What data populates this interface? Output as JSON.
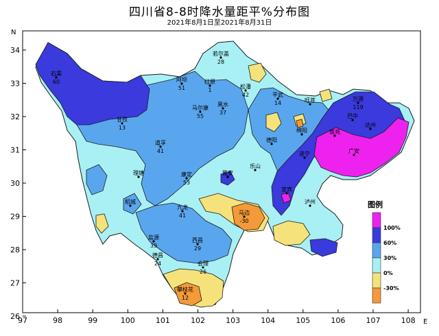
{
  "title": "四川省8-8时降水量距平%分布图",
  "subtitle": "2021年8月1日至2021年8月31日",
  "axes": {
    "x_ticks": [
      "97",
      "98",
      "99",
      "100",
      "101",
      "102",
      "103",
      "104",
      "105",
      "106",
      "107",
      "108"
    ],
    "y_ticks": [
      "34",
      "33",
      "32",
      "31",
      "30",
      "29",
      "28",
      "27",
      "26"
    ],
    "x_letter": "E",
    "y_letter": "N"
  },
  "legend": {
    "title": "图例",
    "items": [
      {
        "label": "100%",
        "color": "#ee22ee"
      },
      {
        "label": "60%",
        "color": "#3a3add"
      },
      {
        "label": "30%",
        "color": "#5aa6ee"
      },
      {
        "label": "0%",
        "color": "#a8f0f4"
      },
      {
        "label": "-30%",
        "color": "#f5e27a"
      },
      {
        "label": "",
        "color": "#f39a3a"
      }
    ]
  },
  "colors": {
    "magenta": "#ee22ee",
    "dark_blue": "#3a3add",
    "mid_blue": "#5aa6ee",
    "cyan": "#a8f0f4",
    "yellow": "#f5e27a",
    "orange": "#f39a3a"
  },
  "stations": [
    {
      "name": "石渠",
      "value": "60"
    },
    {
      "name": "若尔盖",
      "value": "28"
    },
    {
      "name": "阿坝",
      "value": "51"
    },
    {
      "name": "红原",
      "value": "1"
    },
    {
      "name": "松潘",
      "value": "42"
    },
    {
      "name": "甘孜",
      "value": "13"
    },
    {
      "name": "马尔康",
      "value": "55"
    },
    {
      "name": "黑水",
      "value": "37"
    },
    {
      "name": "平武",
      "value": "14"
    },
    {
      "name": "旺苍",
      "value": ""
    },
    {
      "name": "巴中",
      "value": ""
    },
    {
      "name": "万源",
      "value": "119"
    },
    {
      "name": "达州",
      "value": ""
    },
    {
      "name": "南充",
      "value": ""
    },
    {
      "name": "广安",
      "value": ""
    },
    {
      "name": "德阳",
      "value": ""
    },
    {
      "name": "绵阳",
      "value": ""
    },
    {
      "name": "遂宁",
      "value": ""
    },
    {
      "name": "雅安",
      "value": ""
    },
    {
      "name": "乐山",
      "value": ""
    },
    {
      "name": "宜宾",
      "value": ""
    },
    {
      "name": "泸州",
      "value": ""
    },
    {
      "name": "道孚",
      "value": "41"
    },
    {
      "name": "康定",
      "value": "53"
    },
    {
      "name": "理塘",
      "value": ""
    },
    {
      "name": "稻城",
      "value": ""
    },
    {
      "name": "九龙",
      "value": "41"
    },
    {
      "name": "西昌",
      "value": "29"
    },
    {
      "name": "会理",
      "value": "26"
    },
    {
      "name": "盐源",
      "value": "39"
    },
    {
      "name": "德昌",
      "value": "24"
    },
    {
      "name": "攀枝花",
      "value": "12"
    },
    {
      "name": "马边",
      "value": "-30"
    }
  ]
}
